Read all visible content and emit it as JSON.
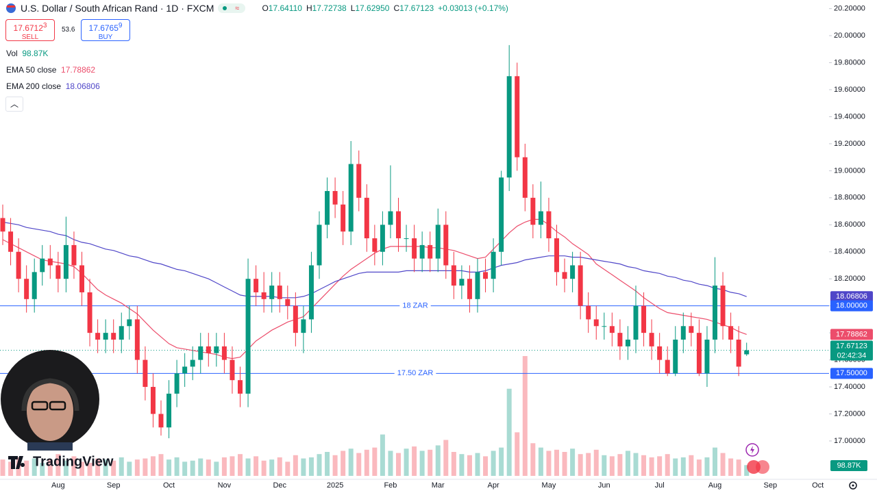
{
  "header": {
    "symbol": "U.S. Dollar / South African Rand · 1D · FXCM",
    "ohlc": [
      {
        "key": "O",
        "value": "17.64110"
      },
      {
        "key": "H",
        "value": "17.72738"
      },
      {
        "key": "L",
        "value": "17.62950"
      },
      {
        "key": "C",
        "value": "17.67123"
      }
    ],
    "change": "+0.03013 (+0.17%)",
    "sell": {
      "price": "17.6712",
      "pip": "3",
      "label": "SELL"
    },
    "spread": "53.6",
    "buy": {
      "price": "17.6765",
      "pip": "9",
      "label": "BUY"
    },
    "brand": "TradingView"
  },
  "chart_data": {
    "type": "candlestick",
    "categories": [
      null,
      null,
      null,
      null,
      null,
      null,
      null,
      "Aug",
      null,
      null,
      null,
      null,
      null,
      null,
      "Sep",
      null,
      null,
      null,
      null,
      null,
      null,
      "Oct",
      null,
      null,
      null,
      null,
      null,
      null,
      "Nov",
      null,
      null,
      null,
      null,
      null,
      null,
      "Dec",
      null,
      null,
      null,
      null,
      null,
      null,
      "2025",
      null,
      null,
      null,
      null,
      null,
      null,
      "Feb",
      null,
      null,
      null,
      null,
      null,
      "Mar",
      null,
      null,
      null,
      null,
      null,
      null,
      "Apr",
      null,
      null,
      null,
      null,
      null,
      null,
      "May",
      null,
      null,
      null,
      null,
      null,
      null,
      "Jun",
      null,
      null,
      null,
      null,
      null,
      null,
      "Jul",
      null,
      null,
      null,
      null,
      null,
      null,
      "Aug",
      null,
      null,
      null,
      null,
      null,
      null,
      "Sep",
      null,
      null,
      null,
      null,
      null,
      "Oct"
    ],
    "open": [
      18.65,
      18.55,
      18.4,
      18.2,
      18.05,
      18.25,
      18.35,
      18.3,
      18.2,
      18.45,
      18.3,
      18.1,
      17.8,
      17.75,
      17.8,
      17.75,
      17.85,
      17.9,
      17.6,
      17.4,
      17.2,
      17.1,
      17.35,
      17.5,
      17.55,
      17.6,
      17.7,
      17.65,
      17.7,
      17.6,
      17.45,
      17.35,
      18.2,
      18.1,
      18.05,
      18.15,
      18.05,
      18.0,
      17.8,
      17.9,
      18.3,
      18.6,
      18.85,
      18.75,
      18.55,
      19.05,
      18.8,
      18.5,
      18.4,
      18.6,
      18.7,
      18.5,
      18.5,
      18.35,
      18.45,
      18.35,
      18.6,
      18.3,
      18.15,
      18.2,
      18.05,
      18.25,
      18.2,
      18.4,
      18.95,
      19.7,
      19.1,
      18.8,
      18.6,
      18.7,
      18.5,
      18.25,
      18.2,
      18.3,
      18.0,
      17.9,
      17.85,
      17.85,
      17.8,
      17.7,
      17.75,
      18.0,
      17.8,
      17.7,
      17.6,
      17.5,
      17.75,
      17.85,
      17.8,
      17.5,
      17.75,
      18.15,
      17.85,
      17.75,
      17.6411,
      null,
      null,
      null,
      null,
      null,
      null,
      null,
      null,
      null
    ],
    "high": [
      18.75,
      18.65,
      18.5,
      18.3,
      18.35,
      18.45,
      18.45,
      18.4,
      18.66,
      18.55,
      18.4,
      18.2,
      17.9,
      17.9,
      17.9,
      17.95,
      18.0,
      18.0,
      17.7,
      17.5,
      17.3,
      17.45,
      17.6,
      17.65,
      17.7,
      17.8,
      17.8,
      17.8,
      17.8,
      17.7,
      17.55,
      18.35,
      18.3,
      18.25,
      18.25,
      18.25,
      18.15,
      18.1,
      18.0,
      18.4,
      18.7,
      18.95,
      18.95,
      18.85,
      19.22,
      19.15,
      18.9,
      18.6,
      18.7,
      19.04,
      18.8,
      18.6,
      18.6,
      18.55,
      18.55,
      18.72,
      18.7,
      18.4,
      18.3,
      18.3,
      18.35,
      18.35,
      18.5,
      19.0,
      19.93,
      19.8,
      19.2,
      18.9,
      18.92,
      18.8,
      18.6,
      18.35,
      18.4,
      18.4,
      18.1,
      18.0,
      17.95,
      17.95,
      17.9,
      17.85,
      18.15,
      18.1,
      17.9,
      17.8,
      17.7,
      17.85,
      17.95,
      17.95,
      17.9,
      17.85,
      18.36,
      18.25,
      17.95,
      17.85,
      17.72738,
      null,
      null,
      null,
      null,
      null,
      null,
      null,
      null,
      null
    ],
    "low": [
      18.45,
      18.3,
      18.1,
      17.95,
      17.95,
      18.15,
      18.2,
      18.1,
      18.1,
      18.2,
      18.0,
      17.7,
      17.65,
      17.65,
      17.65,
      17.65,
      17.75,
      17.5,
      17.3,
      17.1,
      17.04,
      17.02,
      17.25,
      17.4,
      17.45,
      17.5,
      17.55,
      17.55,
      17.5,
      17.35,
      17.25,
      17.25,
      18.0,
      17.95,
      17.95,
      17.95,
      17.9,
      17.7,
      17.65,
      17.8,
      18.2,
      18.5,
      18.65,
      18.45,
      18.45,
      18.7,
      18.4,
      18.3,
      18.3,
      18.5,
      18.4,
      18.4,
      18.25,
      18.25,
      18.25,
      18.25,
      18.2,
      18.05,
      18.05,
      17.95,
      17.95,
      18.1,
      18.1,
      18.3,
      18.85,
      19.0,
      18.7,
      18.5,
      18.5,
      18.4,
      18.15,
      18.1,
      18.1,
      17.9,
      17.8,
      17.75,
      17.75,
      17.7,
      17.6,
      17.6,
      17.65,
      17.7,
      17.6,
      17.5,
      17.48,
      17.48,
      17.65,
      17.7,
      17.48,
      17.4,
      17.65,
      17.75,
      17.65,
      17.48,
      17.6295,
      null,
      null,
      null,
      null,
      null,
      null,
      null,
      null,
      null
    ],
    "close": [
      18.55,
      18.4,
      18.2,
      18.05,
      18.25,
      18.35,
      18.3,
      18.2,
      18.45,
      18.3,
      18.1,
      17.8,
      17.75,
      17.8,
      17.75,
      17.85,
      17.9,
      17.6,
      17.4,
      17.2,
      17.1,
      17.35,
      17.5,
      17.55,
      17.6,
      17.7,
      17.65,
      17.7,
      17.6,
      17.45,
      17.35,
      18.2,
      18.1,
      18.05,
      18.15,
      18.05,
      18.0,
      17.8,
      17.9,
      18.3,
      18.6,
      18.85,
      18.75,
      18.55,
      19.05,
      18.8,
      18.5,
      18.4,
      18.6,
      18.7,
      18.5,
      18.5,
      18.35,
      18.45,
      18.35,
      18.6,
      18.3,
      18.15,
      18.2,
      18.05,
      18.25,
      18.2,
      18.4,
      18.95,
      19.7,
      19.1,
      18.8,
      18.6,
      18.7,
      18.5,
      18.25,
      18.2,
      18.3,
      18.0,
      17.9,
      17.85,
      17.85,
      17.8,
      17.7,
      17.75,
      18.0,
      17.8,
      17.7,
      17.6,
      17.5,
      17.75,
      17.85,
      17.8,
      17.5,
      17.75,
      18.15,
      17.85,
      17.75,
      17.55,
      17.67123,
      null,
      null,
      null,
      null,
      null,
      null,
      null,
      null,
      null
    ],
    "up_color": "#089981",
    "down_color": "#f23645",
    "series": [
      {
        "name": "EMA 50 close",
        "color": "#ec4d6b",
        "last_label": "17.78862",
        "values": [
          18.49,
          18.46,
          18.43,
          18.4,
          18.37,
          18.34,
          18.33,
          18.32,
          18.31,
          18.29,
          18.24,
          18.18,
          18.12,
          18.08,
          18.05,
          18.02,
          17.98,
          17.94,
          17.88,
          17.82,
          17.77,
          17.72,
          17.69,
          17.68,
          17.67,
          17.66,
          17.65,
          17.64,
          17.62,
          17.61,
          17.62,
          17.68,
          17.74,
          17.78,
          17.82,
          17.85,
          17.88,
          17.9,
          17.92,
          17.98,
          18.04,
          18.1,
          18.16,
          18.22,
          18.27,
          18.31,
          18.35,
          18.39,
          18.42,
          18.44,
          18.44,
          18.44,
          18.44,
          18.44,
          18.43,
          18.43,
          18.42,
          18.41,
          18.39,
          18.37,
          18.35,
          18.36,
          18.42,
          18.48,
          18.54,
          18.59,
          18.62,
          18.64,
          18.64,
          18.6,
          18.55,
          18.51,
          18.46,
          18.42,
          18.38,
          18.31,
          18.27,
          18.23,
          18.19,
          18.15,
          18.11,
          18.06,
          18.02,
          17.98,
          17.95,
          17.94,
          17.93,
          17.92,
          17.91,
          17.9,
          17.88,
          17.86,
          17.84,
          17.81,
          17.78862,
          null,
          null,
          null,
          null,
          null,
          null,
          null,
          null,
          null
        ]
      },
      {
        "name": "EMA 200 close",
        "color": "#4f46c8",
        "last_label": "18.06806",
        "values": [
          18.62,
          18.61,
          18.6,
          18.58,
          18.57,
          18.56,
          18.55,
          18.53,
          18.52,
          18.49,
          18.47,
          18.46,
          18.44,
          18.42,
          18.41,
          18.39,
          18.37,
          18.36,
          18.34,
          18.32,
          18.31,
          18.29,
          18.27,
          18.26,
          18.24,
          18.22,
          18.2,
          18.17,
          18.14,
          18.11,
          18.08,
          18.07,
          18.07,
          18.07,
          18.07,
          18.06,
          18.06,
          18.06,
          18.07,
          18.09,
          18.12,
          18.15,
          18.18,
          18.2,
          18.22,
          18.24,
          18.25,
          18.25,
          18.25,
          18.25,
          18.25,
          18.26,
          18.26,
          18.26,
          18.26,
          18.26,
          18.26,
          18.26,
          18.26,
          18.25,
          18.25,
          18.26,
          18.28,
          18.3,
          18.31,
          18.32,
          18.34,
          18.35,
          18.36,
          18.37,
          18.37,
          18.37,
          18.36,
          18.36,
          18.35,
          18.34,
          18.33,
          18.32,
          18.31,
          18.29,
          18.28,
          18.26,
          18.25,
          18.24,
          18.22,
          18.21,
          18.19,
          18.18,
          18.16,
          18.15,
          18.13,
          18.12,
          18.1,
          18.09,
          18.06806,
          null,
          null,
          null,
          null,
          null,
          null,
          null,
          null,
          null
        ]
      }
    ],
    "volume": {
      "name": "Vol",
      "last_label": "98.87K",
      "values": [
        150,
        130,
        170,
        140,
        160,
        120,
        150,
        200,
        140,
        180,
        130,
        120,
        160,
        150,
        140,
        170,
        130,
        150,
        160,
        180,
        200,
        150,
        170,
        130,
        140,
        160,
        150,
        130,
        170,
        180,
        200,
        160,
        180,
        140,
        150,
        170,
        130,
        190,
        160,
        170,
        200,
        220,
        190,
        230,
        250,
        210,
        240,
        260,
        380,
        230,
        210,
        250,
        270,
        230,
        240,
        280,
        330,
        220,
        200,
        190,
        210,
        180,
        230,
        260,
        800,
        400,
        1100,
        300,
        260,
        230,
        240,
        220,
        250,
        200,
        210,
        240,
        190,
        180,
        200,
        230,
        210,
        190,
        170,
        180,
        200,
        160,
        170,
        190,
        150,
        170,
        260,
        210,
        160,
        150,
        98.87,
        null,
        null,
        null,
        null,
        null,
        null,
        null,
        null,
        null
      ]
    },
    "levels": [
      {
        "value": 18,
        "label": "18 ZAR",
        "tag": "18.00000",
        "color": "#2962ff"
      },
      {
        "value": 17.5,
        "label": "17.50 ZAR",
        "tag": "17.50000",
        "color": "#2962ff"
      }
    ],
    "last_price_label": "17.67123",
    "countdown": "02:42:34",
    "ylim": [
      16.716,
      20.264
    ],
    "yticks": [
      {
        "value": 17,
        "label": "17.00000"
      },
      {
        "value": 17.2,
        "label": "17.20000"
      },
      {
        "value": 17.4,
        "label": "17.40000"
      },
      {
        "value": 17.6,
        "label": "17.60000"
      },
      {
        "value": 17.8,
        "label": "17.80000"
      },
      {
        "value": 18,
        "label": "18.00000"
      },
      {
        "value": 18.2,
        "label": "18.20000"
      },
      {
        "value": 18.4,
        "label": "18.40000"
      },
      {
        "value": 18.6,
        "label": "18.60000"
      },
      {
        "value": 18.8,
        "label": "18.80000"
      },
      {
        "value": 19,
        "label": "19.00000"
      },
      {
        "value": 19.2,
        "label": "19.20000"
      },
      {
        "value": 19.4,
        "label": "19.40000"
      },
      {
        "value": 19.6,
        "label": "19.60000"
      },
      {
        "value": 19.8,
        "label": "19.80000"
      },
      {
        "value": 20,
        "label": "20.00000"
      },
      {
        "value": 20.2,
        "label": "20.20000"
      }
    ]
  }
}
